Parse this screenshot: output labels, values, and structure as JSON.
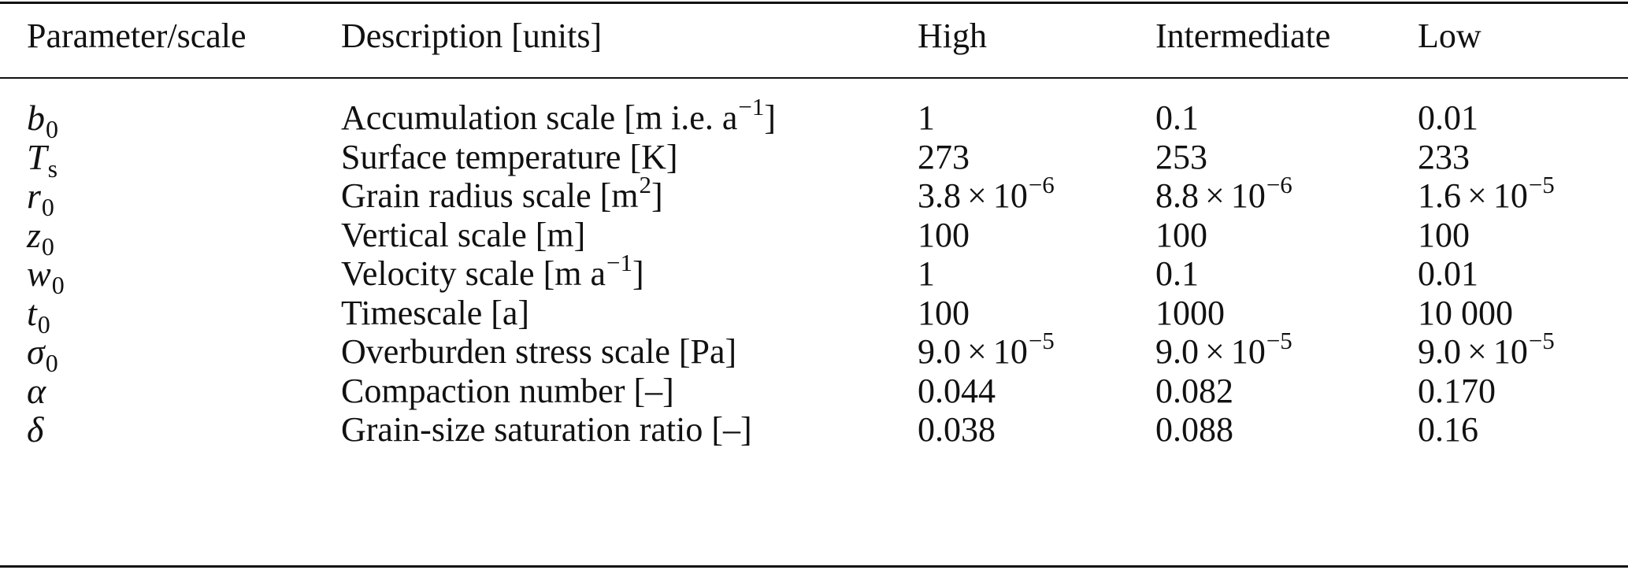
{
  "table": {
    "headers": [
      "Parameter/scale",
      "Description [units]",
      "High",
      "Intermediate",
      "Low"
    ],
    "rows": [
      {
        "param": {
          "symbol": "b",
          "sub": "0"
        },
        "description": {
          "before": "Accumulation scale [m i.e. a",
          "sup": "−1",
          "after": "]"
        },
        "high": {
          "mantissa": "1"
        },
        "intermediate": {
          "mantissa": "0.1"
        },
        "low": {
          "mantissa": "0.01"
        }
      },
      {
        "param": {
          "symbol": "T",
          "sub": "s"
        },
        "description": {
          "before": "Surface temperature [K]",
          "sup": "",
          "after": ""
        },
        "high": {
          "mantissa": "273"
        },
        "intermediate": {
          "mantissa": "253"
        },
        "low": {
          "mantissa": "233"
        }
      },
      {
        "param": {
          "symbol": "r",
          "sub": "0"
        },
        "description": {
          "before": "Grain radius scale [m",
          "sup": "2",
          "after": "]"
        },
        "high": {
          "mantissa": "3.8",
          "times": "×",
          "base": "10",
          "exp": "−6"
        },
        "intermediate": {
          "mantissa": "8.8",
          "times": "×",
          "base": "10",
          "exp": "−6"
        },
        "low": {
          "mantissa": "1.6",
          "times": "×",
          "base": "10",
          "exp": "−5"
        }
      },
      {
        "param": {
          "symbol": "z",
          "sub": "0"
        },
        "description": {
          "before": "Vertical scale [m]",
          "sup": "",
          "after": ""
        },
        "high": {
          "mantissa": "100"
        },
        "intermediate": {
          "mantissa": "100"
        },
        "low": {
          "mantissa": "100"
        }
      },
      {
        "param": {
          "symbol": "w",
          "sub": "0"
        },
        "description": {
          "before": "Velocity scale [m a",
          "sup": "−1",
          "after": "]"
        },
        "high": {
          "mantissa": "1"
        },
        "intermediate": {
          "mantissa": "0.1"
        },
        "low": {
          "mantissa": "0.01"
        }
      },
      {
        "param": {
          "symbol": "t",
          "sub": "0"
        },
        "description": {
          "before": "Timescale [a]",
          "sup": "",
          "after": ""
        },
        "high": {
          "mantissa": "100"
        },
        "intermediate": {
          "mantissa": "1000"
        },
        "low": {
          "mantissa": "10 000"
        }
      },
      {
        "param": {
          "symbol": "σ",
          "sub": "0"
        },
        "description": {
          "before": "Overburden stress scale [Pa]",
          "sup": "",
          "after": ""
        },
        "high": {
          "mantissa": "9.0",
          "times": "×",
          "base": "10",
          "exp": "−5"
        },
        "intermediate": {
          "mantissa": "9.0",
          "times": "×",
          "base": "10",
          "exp": "−5"
        },
        "low": {
          "mantissa": "9.0",
          "times": "×",
          "base": "10",
          "exp": "−5"
        }
      },
      {
        "param": {
          "symbol": "α",
          "sub": ""
        },
        "description": {
          "before": "Compaction number [–]",
          "sup": "",
          "after": ""
        },
        "high": {
          "mantissa": "0.044"
        },
        "intermediate": {
          "mantissa": "0.082"
        },
        "low": {
          "mantissa": "0.170"
        }
      },
      {
        "param": {
          "symbol": "δ",
          "sub": ""
        },
        "description": {
          "before": "Grain-size saturation ratio [–]",
          "sup": "",
          "after": ""
        },
        "high": {
          "mantissa": "0.038"
        },
        "intermediate": {
          "mantissa": "0.088"
        },
        "low": {
          "mantissa": "0.16"
        }
      }
    ]
  }
}
